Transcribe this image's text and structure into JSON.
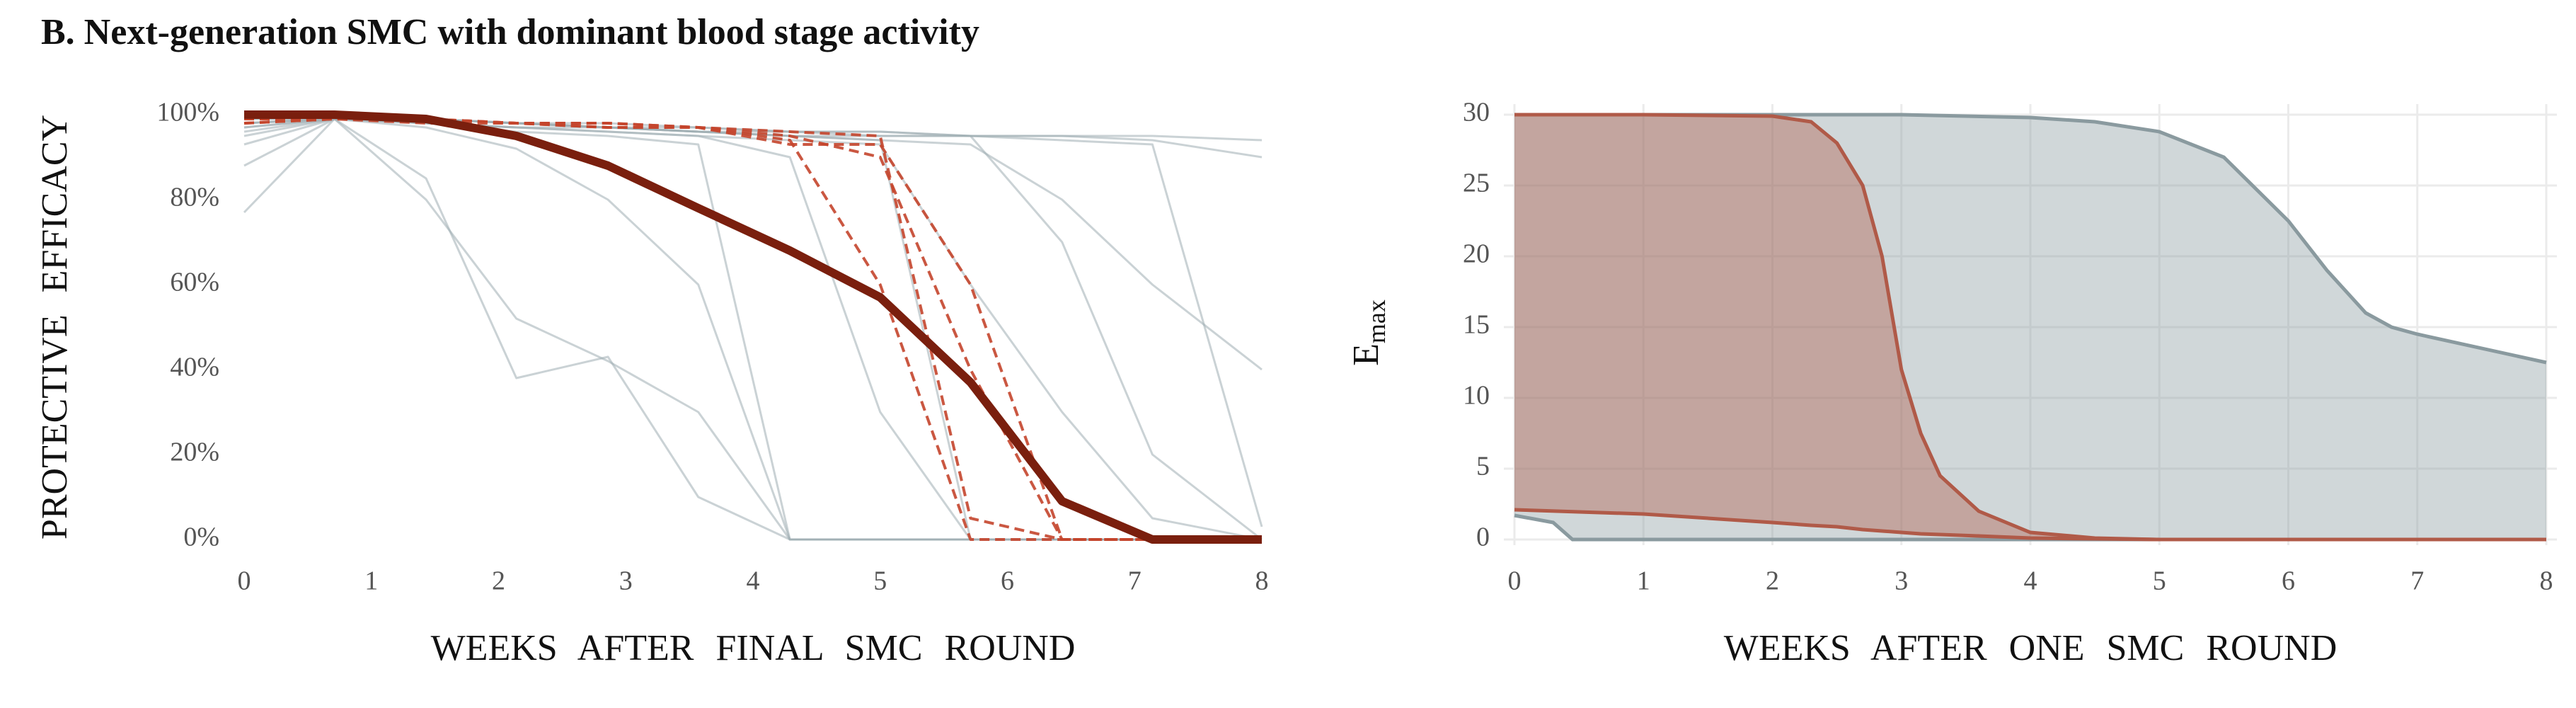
{
  "title": "B. Next-generation SMC with dominant blood stage activity",
  "chart_data": [
    {
      "type": "line",
      "ylabel": "PROTECTIVE EFFICACY",
      "xlabel": "WEEKS AFTER FINAL SMC ROUND",
      "x": [
        0,
        0.71,
        1.43,
        2.14,
        2.86,
        3.57,
        4.29,
        5,
        5.71,
        6.43,
        7.14,
        8
      ],
      "xlim": [
        0,
        8
      ],
      "xticks": [
        0,
        1,
        2,
        3,
        4,
        5,
        6,
        7,
        8
      ],
      "ylim": [
        0,
        100
      ],
      "yticks": [
        {
          "value": 0,
          "label": "0%"
        },
        {
          "value": 20,
          "label": "20%"
        },
        {
          "value": 40,
          "label": "40%"
        },
        {
          "value": 60,
          "label": "60%"
        },
        {
          "value": 80,
          "label": "80%"
        },
        {
          "value": 100,
          "label": "100%"
        }
      ],
      "grid": false,
      "series": [
        {
          "color": "#9fadb2",
          "line_style": "thin",
          "values": [
            96,
            99,
            99,
            98,
            97,
            96,
            95,
            95,
            95,
            95,
            95,
            94
          ]
        },
        {
          "color": "#9fadb2",
          "line_style": "thin",
          "values": [
            95,
            99,
            99,
            98,
            97,
            96,
            95,
            94,
            93,
            80,
            60,
            40
          ]
        },
        {
          "color": "#9fadb2",
          "line_style": "thin",
          "values": [
            93,
            99,
            98,
            97,
            96,
            95,
            94,
            93,
            60,
            30,
            5,
            0
          ]
        },
        {
          "color": "#9fadb2",
          "line_style": "thin",
          "values": [
            88,
            99,
            98,
            96,
            95,
            93,
            0,
            0,
            0,
            0,
            0,
            0
          ]
        },
        {
          "color": "#9fadb2",
          "line_style": "thin",
          "values": [
            77,
            99,
            80,
            52,
            42,
            30,
            0,
            0,
            0,
            0,
            0,
            0
          ]
        },
        {
          "color": "#9fadb2",
          "line_style": "thin",
          "values": [
            97,
            99,
            85,
            38,
            43,
            10,
            0,
            0,
            0,
            0,
            0,
            0
          ]
        },
        {
          "color": "#9fadb2",
          "line_style": "thin",
          "values": [
            98,
            99,
            97,
            92,
            80,
            60,
            0,
            0,
            0,
            0,
            0,
            0
          ]
        },
        {
          "color": "#9fadb2",
          "line_style": "thin",
          "values": [
            98,
            99,
            98,
            97,
            97,
            96,
            95,
            94,
            0,
            0,
            0,
            0
          ]
        },
        {
          "color": "#9fadb2",
          "line_style": "thin",
          "values": [
            99,
            99,
            99,
            98,
            97,
            97,
            96,
            96,
            95,
            94,
            93,
            3
          ]
        },
        {
          "color": "#9fadb2",
          "line_style": "thin",
          "values": [
            98,
            99,
            99,
            98,
            97,
            96,
            96,
            95,
            95,
            70,
            20,
            0
          ]
        },
        {
          "color": "#9fadb2",
          "line_style": "thin",
          "values": [
            97,
            99,
            98,
            97,
            96,
            95,
            90,
            30,
            0,
            0,
            0,
            0
          ]
        },
        {
          "color": "#9fadb2",
          "line_style": "thin",
          "values": [
            99,
            99,
            99,
            98,
            98,
            97,
            96,
            96,
            95,
            95,
            94,
            90
          ]
        },
        {
          "color": "#c4452c",
          "line_style": "dashed",
          "values": [
            99,
            99,
            99,
            98,
            98,
            97,
            96,
            95,
            5,
            0,
            0,
            0
          ]
        },
        {
          "color": "#c4452c",
          "line_style": "dashed",
          "values": [
            98,
            99,
            99,
            98,
            98,
            97,
            95,
            90,
            40,
            0,
            0,
            0
          ]
        },
        {
          "color": "#c4452c",
          "line_style": "dashed",
          "values": [
            99,
            99,
            99,
            98,
            97,
            97,
            94,
            60,
            0,
            0,
            0,
            0
          ]
        },
        {
          "color": "#c4452c",
          "line_style": "dashed",
          "values": [
            98,
            99,
            98,
            98,
            97,
            97,
            93,
            93,
            60,
            0,
            0,
            0
          ]
        },
        {
          "color": "#7a1f0e",
          "line_style": "bold",
          "values": [
            100,
            100,
            99,
            95,
            88,
            78,
            68,
            57,
            37,
            9,
            0,
            0
          ]
        }
      ]
    },
    {
      "type": "band",
      "ylabel": {
        "main": "E",
        "sub": "max"
      },
      "xlabel": "WEEKS AFTER ONE SMC ROUND",
      "xlim": [
        0,
        8
      ],
      "xticks": [
        0,
        1,
        2,
        3,
        4,
        5,
        6,
        7,
        8
      ],
      "ylim": [
        0,
        30
      ],
      "yticks": [
        0,
        5,
        10,
        15,
        20,
        25,
        30
      ],
      "grid": true,
      "series": [
        {
          "color": "#8a9a9f",
          "x": [
            0,
            0.3,
            0.45,
            1,
            2,
            3,
            4,
            4.5,
            5,
            5.5,
            6,
            6.3,
            6.6,
            6.8,
            7,
            8
          ],
          "values": [
            30,
            30,
            30,
            30,
            30,
            30,
            29.8,
            29.5,
            28.8,
            27,
            22.5,
            19,
            16,
            15,
            14.5,
            12.5
          ],
          "lower": [
            1.7,
            1.2,
            0,
            0,
            0,
            0,
            0,
            0,
            0,
            0,
            0,
            0,
            0,
            0,
            0,
            0
          ]
        },
        {
          "color": "#b05a48",
          "x": [
            0,
            1,
            2,
            2.3,
            2.5,
            2.7,
            2.85,
            3,
            3.15,
            3.3,
            3.6,
            4,
            4.5,
            5,
            8
          ],
          "values": [
            30,
            30,
            29.9,
            29.5,
            28,
            25,
            20,
            12,
            7.5,
            4.5,
            2,
            0.5,
            0.1,
            0,
            0
          ],
          "lower": [
            2.1,
            1.8,
            1.2,
            1,
            0.9,
            0.7,
            0.6,
            0.5,
            0.4,
            0.35,
            0.25,
            0.1,
            0.05,
            0,
            0
          ]
        }
      ]
    }
  ]
}
